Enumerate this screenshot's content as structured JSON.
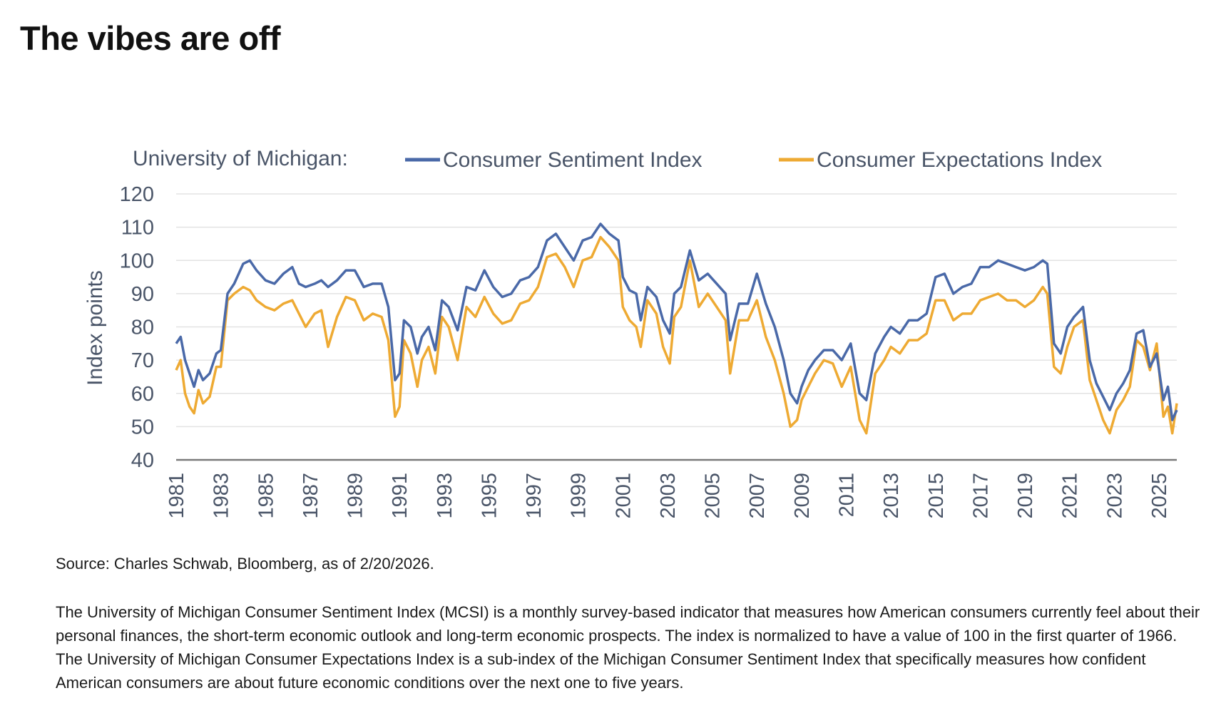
{
  "headline": "The vibes are off",
  "source": "Source: Charles Schwab, Bloomberg, as of 2/20/2026.",
  "description": "The University of Michigan Consumer Sentiment Index (MCSI) is a monthly survey-based indicator that measures how American consumers currently feel about their personal finances, the short-term economic outlook and long-term economic prospects. The index is normalized to have a value of 100 in the first quarter of 1966. The University of Michigan Consumer Expectations Index is a sub-index of the Michigan Consumer Sentiment Index that specifically measures how confident American consumers are about future economic conditions over the next one to five years.",
  "chart_data": {
    "type": "line",
    "legend_prefix": "University of Michigan:",
    "ylabel": "Index points",
    "ylim": [
      40,
      120
    ],
    "yticks": [
      40,
      50,
      60,
      70,
      80,
      90,
      100,
      110,
      120
    ],
    "xlim": [
      1981,
      2025.8
    ],
    "xticks": [
      "1981",
      "1983",
      "1985",
      "1987",
      "1989",
      "1991",
      "1993",
      "1995",
      "1997",
      "1999",
      "2001",
      "2003",
      "2005",
      "2007",
      "2009",
      "2011",
      "2013",
      "2015",
      "2017",
      "2019",
      "2021",
      "2023",
      "2025"
    ],
    "grid": "horizontal",
    "legend_position": "top",
    "series": [
      {
        "name": "Consumer Sentiment Index",
        "color": "#4a69a8",
        "x": [
          1981.0,
          1981.2,
          1981.4,
          1981.6,
          1981.8,
          1982.0,
          1982.2,
          1982.5,
          1982.8,
          1983.0,
          1983.3,
          1983.6,
          1984.0,
          1984.3,
          1984.6,
          1985.0,
          1985.4,
          1985.8,
          1986.2,
          1986.5,
          1986.8,
          1987.2,
          1987.5,
          1987.8,
          1988.2,
          1988.6,
          1989.0,
          1989.4,
          1989.8,
          1990.2,
          1990.5,
          1990.8,
          1991.0,
          1991.2,
          1991.5,
          1991.8,
          1992.0,
          1992.3,
          1992.6,
          1992.9,
          1993.2,
          1993.6,
          1994.0,
          1994.4,
          1994.8,
          1995.2,
          1995.6,
          1996.0,
          1996.4,
          1996.8,
          1997.2,
          1997.6,
          1998.0,
          1998.4,
          1998.8,
          1999.2,
          1999.6,
          2000.0,
          2000.4,
          2000.8,
          2001.0,
          2001.3,
          2001.6,
          2001.8,
          2002.1,
          2002.5,
          2002.8,
          2003.1,
          2003.3,
          2003.6,
          2004.0,
          2004.4,
          2004.8,
          2005.2,
          2005.6,
          2005.8,
          2006.2,
          2006.6,
          2007.0,
          2007.4,
          2007.8,
          2008.2,
          2008.5,
          2008.8,
          2009.0,
          2009.3,
          2009.6,
          2010.0,
          2010.4,
          2010.8,
          2011.2,
          2011.6,
          2011.9,
          2012.3,
          2012.7,
          2013.0,
          2013.4,
          2013.8,
          2014.2,
          2014.6,
          2015.0,
          2015.4,
          2015.8,
          2016.2,
          2016.6,
          2017.0,
          2017.4,
          2017.8,
          2018.2,
          2018.6,
          2019.0,
          2019.4,
          2019.8,
          2020.0,
          2020.3,
          2020.6,
          2020.9,
          2021.2,
          2021.6,
          2021.9,
          2022.2,
          2022.5,
          2022.8,
          2023.1,
          2023.4,
          2023.7,
          2024.0,
          2024.3,
          2024.6,
          2024.9,
          2025.2,
          2025.4,
          2025.6,
          2025.8
        ],
        "values": [
          75,
          77,
          70,
          66,
          62,
          67,
          64,
          66,
          72,
          73,
          90,
          93,
          99,
          100,
          97,
          94,
          93,
          96,
          98,
          93,
          92,
          93,
          94,
          92,
          94,
          97,
          97,
          92,
          93,
          93,
          86,
          64,
          66,
          82,
          80,
          72,
          77,
          80,
          73,
          88,
          86,
          79,
          92,
          91,
          97,
          92,
          89,
          90,
          94,
          95,
          98,
          106,
          108,
          104,
          100,
          106,
          107,
          111,
          108,
          106,
          95,
          91,
          90,
          82,
          92,
          89,
          82,
          78,
          90,
          92,
          103,
          94,
          96,
          93,
          90,
          76,
          87,
          87,
          96,
          87,
          80,
          70,
          60,
          57,
          62,
          67,
          70,
          73,
          73,
          70,
          75,
          60,
          58,
          72,
          77,
          80,
          78,
          82,
          82,
          84,
          95,
          96,
          90,
          92,
          93,
          98,
          98,
          100,
          99,
          98,
          97,
          98,
          100,
          99,
          75,
          72,
          80,
          83,
          86,
          70,
          63,
          59,
          55,
          60,
          63,
          67,
          78,
          79,
          68,
          72,
          58,
          62,
          52,
          55
        ]
      },
      {
        "name": "Consumer Expectations Index",
        "color": "#eeaa33",
        "x": [
          1981.0,
          1981.2,
          1981.4,
          1981.6,
          1981.8,
          1982.0,
          1982.2,
          1982.5,
          1982.8,
          1983.0,
          1983.3,
          1983.6,
          1984.0,
          1984.3,
          1984.6,
          1985.0,
          1985.4,
          1985.8,
          1986.2,
          1986.5,
          1986.8,
          1987.2,
          1987.5,
          1987.8,
          1988.2,
          1988.6,
          1989.0,
          1989.4,
          1989.8,
          1990.2,
          1990.5,
          1990.8,
          1991.0,
          1991.2,
          1991.5,
          1991.8,
          1992.0,
          1992.3,
          1992.6,
          1992.9,
          1993.2,
          1993.6,
          1994.0,
          1994.4,
          1994.8,
          1995.2,
          1995.6,
          1996.0,
          1996.4,
          1996.8,
          1997.2,
          1997.6,
          1998.0,
          1998.4,
          1998.8,
          1999.2,
          1999.6,
          2000.0,
          2000.4,
          2000.8,
          2001.0,
          2001.3,
          2001.6,
          2001.8,
          2002.1,
          2002.5,
          2002.8,
          2003.1,
          2003.3,
          2003.6,
          2004.0,
          2004.4,
          2004.8,
          2005.2,
          2005.6,
          2005.8,
          2006.2,
          2006.6,
          2007.0,
          2007.4,
          2007.8,
          2008.2,
          2008.5,
          2008.8,
          2009.0,
          2009.3,
          2009.6,
          2010.0,
          2010.4,
          2010.8,
          2011.2,
          2011.6,
          2011.9,
          2012.3,
          2012.7,
          2013.0,
          2013.4,
          2013.8,
          2014.2,
          2014.6,
          2015.0,
          2015.4,
          2015.8,
          2016.2,
          2016.6,
          2017.0,
          2017.4,
          2017.8,
          2018.2,
          2018.6,
          2019.0,
          2019.4,
          2019.8,
          2020.0,
          2020.3,
          2020.6,
          2020.9,
          2021.2,
          2021.6,
          2021.9,
          2022.2,
          2022.5,
          2022.8,
          2023.1,
          2023.4,
          2023.7,
          2024.0,
          2024.3,
          2024.6,
          2024.9,
          2025.2,
          2025.4,
          2025.6,
          2025.8
        ],
        "values": [
          67,
          70,
          60,
          56,
          54,
          61,
          57,
          59,
          68,
          68,
          88,
          90,
          92,
          91,
          88,
          86,
          85,
          87,
          88,
          84,
          80,
          84,
          85,
          74,
          83,
          89,
          88,
          82,
          84,
          83,
          76,
          53,
          56,
          76,
          72,
          62,
          70,
          74,
          66,
          83,
          80,
          70,
          86,
          83,
          89,
          84,
          81,
          82,
          87,
          88,
          92,
          101,
          102,
          98,
          92,
          100,
          101,
          107,
          104,
          100,
          86,
          82,
          80,
          74,
          88,
          84,
          74,
          69,
          83,
          86,
          100,
          86,
          90,
          86,
          82,
          66,
          82,
          82,
          88,
          77,
          70,
          60,
          50,
          52,
          58,
          62,
          66,
          70,
          69,
          62,
          68,
          52,
          48,
          66,
          70,
          74,
          72,
          76,
          76,
          78,
          88,
          88,
          82,
          84,
          84,
          88,
          89,
          90,
          88,
          88,
          86,
          88,
          92,
          90,
          68,
          66,
          74,
          80,
          82,
          64,
          58,
          52,
          48,
          55,
          58,
          62,
          76,
          74,
          67,
          75,
          53,
          56,
          48,
          57
        ]
      }
    ]
  }
}
